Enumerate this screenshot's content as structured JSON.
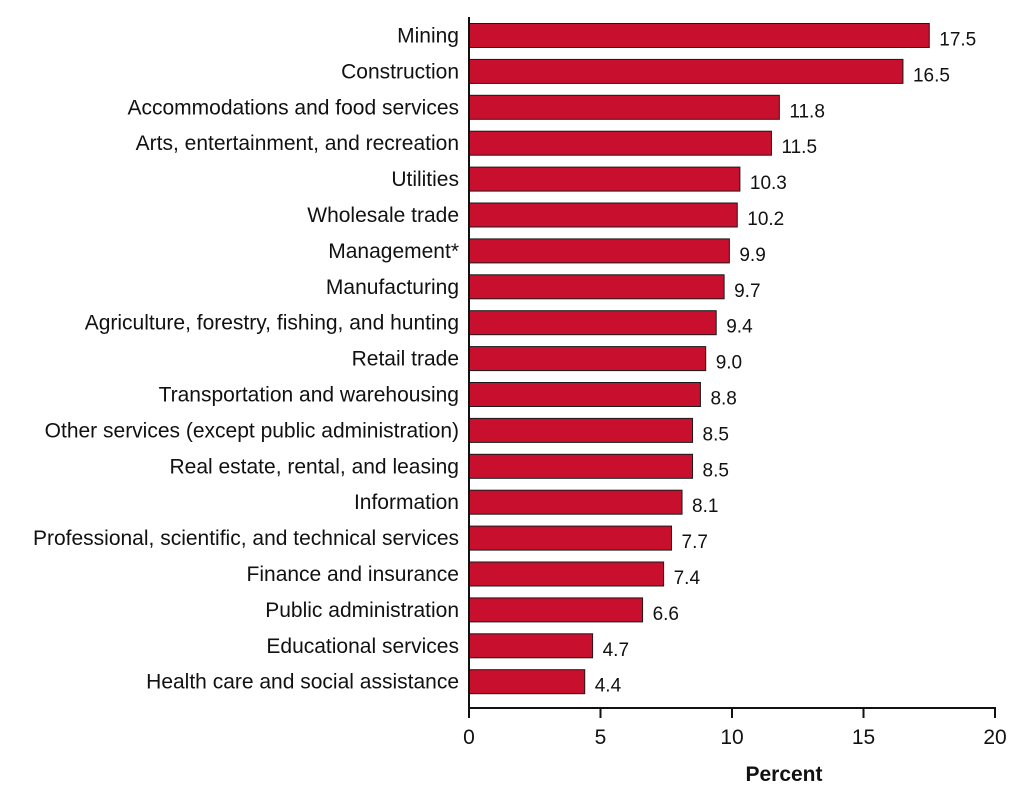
{
  "chart_data": {
    "type": "bar",
    "orientation": "horizontal",
    "title": "",
    "xlabel": "Percent",
    "ylabel": "",
    "xlim": [
      0,
      20
    ],
    "ticks": [
      0,
      5,
      10,
      15,
      20
    ],
    "grid": false,
    "legend": "none",
    "bar_color": "#c8102e",
    "categories": [
      "Mining",
      "Construction",
      "Accommodations and food services",
      "Arts, entertainment, and recreation",
      "Utilities",
      "Wholesale trade",
      "Management*",
      "Manufacturing",
      "Agriculture, forestry, fishing, and hunting",
      "Retail trade",
      "Transportation and warehousing",
      "Other services (except public administration)",
      "Real estate, rental, and leasing",
      "Information",
      "Professional, scientific, and technical services",
      "Finance and insurance",
      "Public administration",
      "Educational services",
      "Health care and social assistance"
    ],
    "values": [
      17.5,
      16.5,
      11.8,
      11.5,
      10.3,
      10.2,
      9.9,
      9.7,
      9.4,
      9.0,
      8.8,
      8.5,
      8.5,
      8.1,
      7.7,
      7.4,
      6.6,
      4.7,
      4.4
    ],
    "value_labels": [
      "17.5",
      "16.5",
      "11.8",
      "11.5",
      "10.3",
      "10.2",
      "9.9",
      "9.7",
      "9.4",
      "9.0",
      "8.8",
      "8.5",
      "8.5",
      "8.1",
      "7.7",
      "7.4",
      "6.6",
      "4.7",
      "4.4"
    ]
  }
}
